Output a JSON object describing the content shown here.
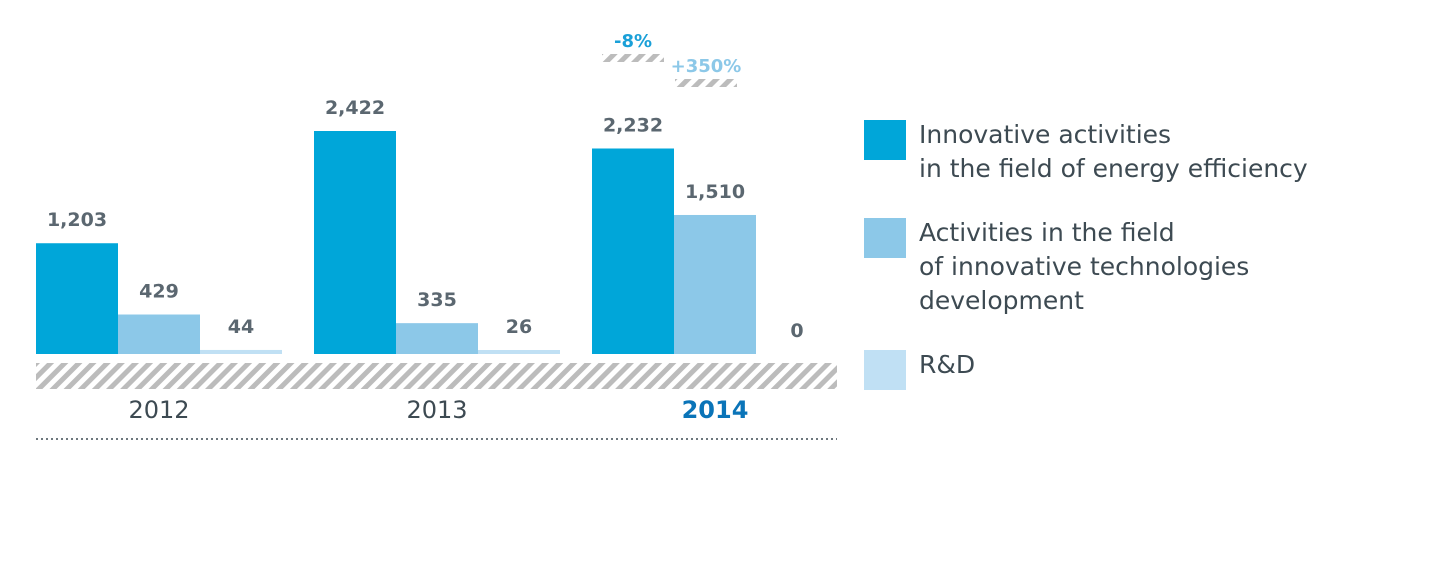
{
  "colors": {
    "series1": "#00a6d9",
    "series2": "#8cc8e8",
    "series3": "#c0e0f4",
    "hatch": "#bcbcbc",
    "change_down": "#1aa0d8",
    "change_up": "#8cc8e8"
  },
  "chart_data": {
    "type": "bar",
    "categories": [
      "2012",
      "2013",
      "2014"
    ],
    "highlight_category": "2014",
    "series": [
      {
        "name": "Innovative activities\nin the field of energy efficiency",
        "values": [
          1203,
          2422,
          2232
        ],
        "labels": [
          "1,203",
          "2,422",
          "2,232"
        ]
      },
      {
        "name": "Activities in the field\nof innovative technologies\ndevelopment",
        "values": [
          429,
          335,
          1510
        ],
        "labels": [
          "429",
          "335",
          "1,510"
        ]
      },
      {
        "name": "R&D",
        "values": [
          44,
          26,
          0
        ],
        "labels": [
          "44",
          "26",
          "0"
        ]
      }
    ],
    "annotations": [
      {
        "category": "2014",
        "series": 0,
        "text": "-8%"
      },
      {
        "category": "2014",
        "series": 1,
        "text": "+350%"
      }
    ],
    "ymax": 2422,
    "legend_position": "right"
  }
}
